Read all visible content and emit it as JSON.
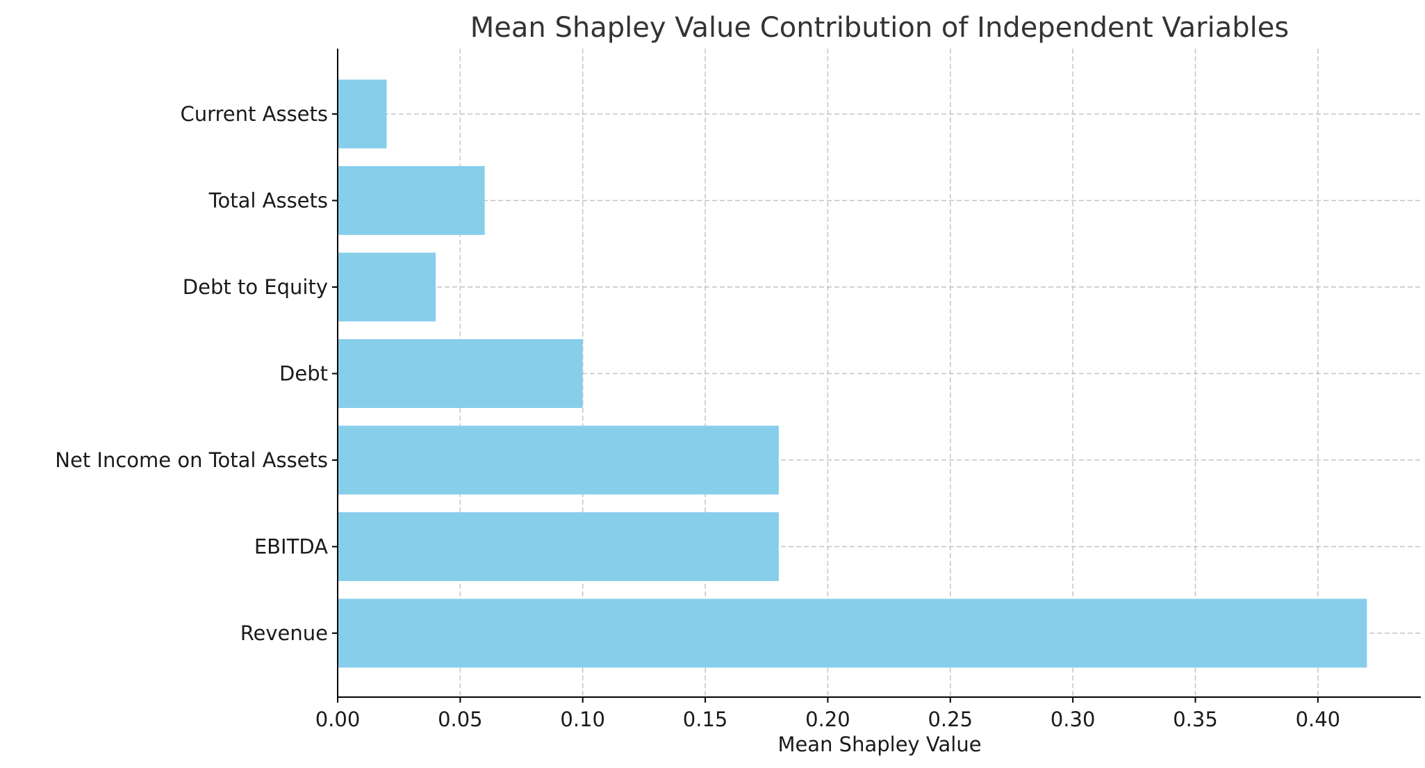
{
  "chart_data": {
    "type": "bar",
    "orientation": "horizontal",
    "title": "Mean Shapley Value Contribution of Independent Variables",
    "xlabel": "Mean Shapley Value",
    "ylabel": "",
    "categories": [
      "Revenue",
      "EBITDA",
      "Net Income on Total Assets",
      "Debt",
      "Debt to Equity",
      "Total Assets",
      "Current Assets"
    ],
    "values": [
      0.42,
      0.18,
      0.18,
      0.1,
      0.04,
      0.06,
      0.02
    ],
    "xlim": [
      0,
      0.442
    ],
    "xticks": [
      0.0,
      0.05,
      0.1,
      0.15,
      0.2,
      0.25,
      0.3,
      0.35,
      0.4
    ],
    "xtick_labels": [
      "0.00",
      "0.05",
      "0.10",
      "0.15",
      "0.20",
      "0.25",
      "0.30",
      "0.35",
      "0.40"
    ],
    "grid": true,
    "legend": "none",
    "colors": {
      "bar": "#87ceeb",
      "grid": "#c4c4c4",
      "axis": "#000000",
      "title": "#333333",
      "text": "#1a1a1a"
    }
  }
}
